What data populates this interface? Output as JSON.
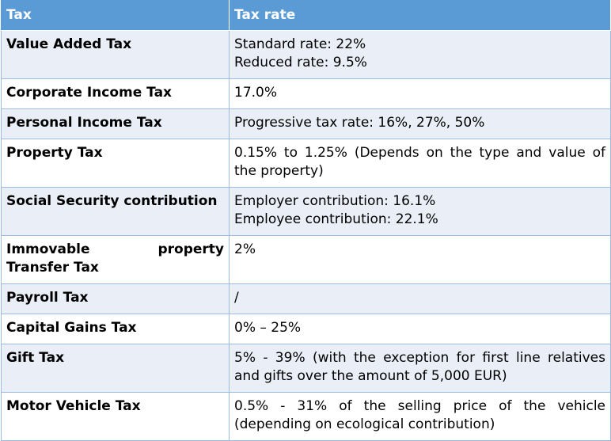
{
  "header": {
    "tax": "Tax",
    "tax_rate": "Tax rate"
  },
  "rows": [
    {
      "tax": "Value Added Tax",
      "rate": [
        "Standard rate: 22%",
        "Reduced rate: 9.5%"
      ]
    },
    {
      "tax": "Corporate Income Tax",
      "rate": [
        "17.0%"
      ]
    },
    {
      "tax": "Personal Income Tax",
      "rate": [
        "Progressive tax rate: 16%, 27%, 50%"
      ]
    },
    {
      "tax": "Property Tax",
      "rate": [
        "0.15% to 1.25% (Depends on the type and value of the property)"
      ]
    },
    {
      "tax": "Social Security contribution",
      "rate": [
        "Employer contribution: 16.1%",
        "Employee contribution: 22.1%"
      ]
    },
    {
      "tax": "Immovable property Transfer Tax",
      "rate": [
        "2%"
      ]
    },
    {
      "tax": "Payroll Tax",
      "rate": [
        "/"
      ]
    },
    {
      "tax": "Capital Gains Tax",
      "rate": [
        "0% – 25%"
      ]
    },
    {
      "tax": "Gift Tax",
      "rate": [
        "5% - 39% (with the exception for first line relatives and gifts over the amount of 5,000 EUR)"
      ]
    },
    {
      "tax": "Motor Vehicle Tax",
      "rate": [
        "0.5% - 31% of the selling price of the vehicle (depending on ecological contribution)"
      ]
    }
  ],
  "colors": {
    "header_bg": "#5b9bd5",
    "band_bg": "#e9eef7",
    "border": "#9bbbe0"
  }
}
